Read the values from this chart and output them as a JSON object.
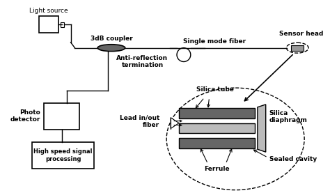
{
  "bg_color": "#ffffff",
  "line_color": "#000000",
  "gray_dark": "#666666",
  "gray_medium": "#999999",
  "gray_light": "#bbbbbb",
  "labels": {
    "light_source": "Light source",
    "coupler": "3dB coupler",
    "smf": "Single mode fiber",
    "sensor_head": "Sensor head",
    "anti_ref": "Anti-reflection\ntermination",
    "photo_det": "Photo\ndetector",
    "high_speed": "High speed signal\nprocessing",
    "silica_tube": "Silica tube",
    "silica_diaphragm": "Silica\ndiaphragm",
    "lead_fiber": "Lead in/out\nfiber",
    "ferrule": "Ferrule",
    "sealed_cavity": "Sealed cavity"
  }
}
